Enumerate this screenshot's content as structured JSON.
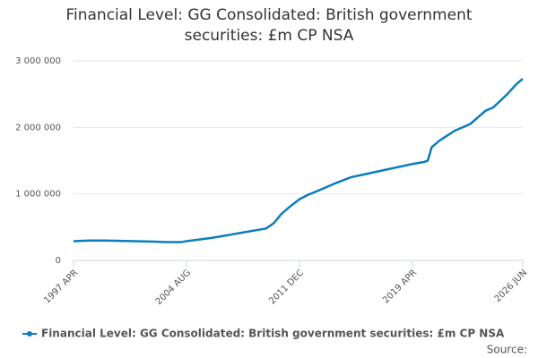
{
  "chart_data": {
    "type": "line",
    "title": "Financial Level: GG Consolidated: British government securities: £m CP NSA",
    "source": "Source:",
    "x": [
      "1997-04",
      "1998-04",
      "1999-04",
      "2000-04",
      "2001-04",
      "2002-04",
      "2003-04",
      "2004-04",
      "2004-08",
      "2005-04",
      "2006-04",
      "2007-04",
      "2008-04",
      "2009-04",
      "2009-10",
      "2010-04",
      "2010-10",
      "2011-04",
      "2011-12",
      "2012-06",
      "2013-04",
      "2014-04",
      "2015-04",
      "2016-04",
      "2017-04",
      "2018-04",
      "2019-04",
      "2020-01",
      "2020-04",
      "2020-07",
      "2021-01",
      "2022-01",
      "2023-01",
      "2024-01",
      "2024-07",
      "2025-06",
      "2026-01",
      "2026-06"
    ],
    "series": [
      {
        "name": "Financial Level: GG Consolidated: British government securities: £m CP NSA",
        "color": "#0b7dbd",
        "values": [
          290000,
          300000,
          300000,
          295000,
          290000,
          285000,
          275000,
          275000,
          290000,
          310000,
          340000,
          380000,
          420000,
          460000,
          480000,
          560000,
          700000,
          800000,
          920000,
          980000,
          1060000,
          1160000,
          1250000,
          1300000,
          1350000,
          1400000,
          1450000,
          1480000,
          1500000,
          1700000,
          1800000,
          1950000,
          2050000,
          2250000,
          2300000,
          2500000,
          2650000,
          2730000
        ]
      }
    ],
    "xlim": [
      "1997-04",
      "2026-06"
    ],
    "xticks": [
      {
        "value": "1997-04",
        "label": "1997 APR"
      },
      {
        "value": "2004-08",
        "label": "2004 AUG"
      },
      {
        "value": "2011-12",
        "label": "2011 DEC"
      },
      {
        "value": "2019-04",
        "label": "2019 APR"
      },
      {
        "value": "2026-06",
        "label": "2026 JUN"
      }
    ],
    "ylim": [
      0,
      3000000
    ],
    "yticks": [
      0,
      {
        "value": 1000000,
        "label": "1 000 000"
      },
      {
        "value": 2000000,
        "label": "2 000 000"
      },
      {
        "value": 3000000,
        "label": "3 000 000"
      }
    ],
    "grid": true
  }
}
